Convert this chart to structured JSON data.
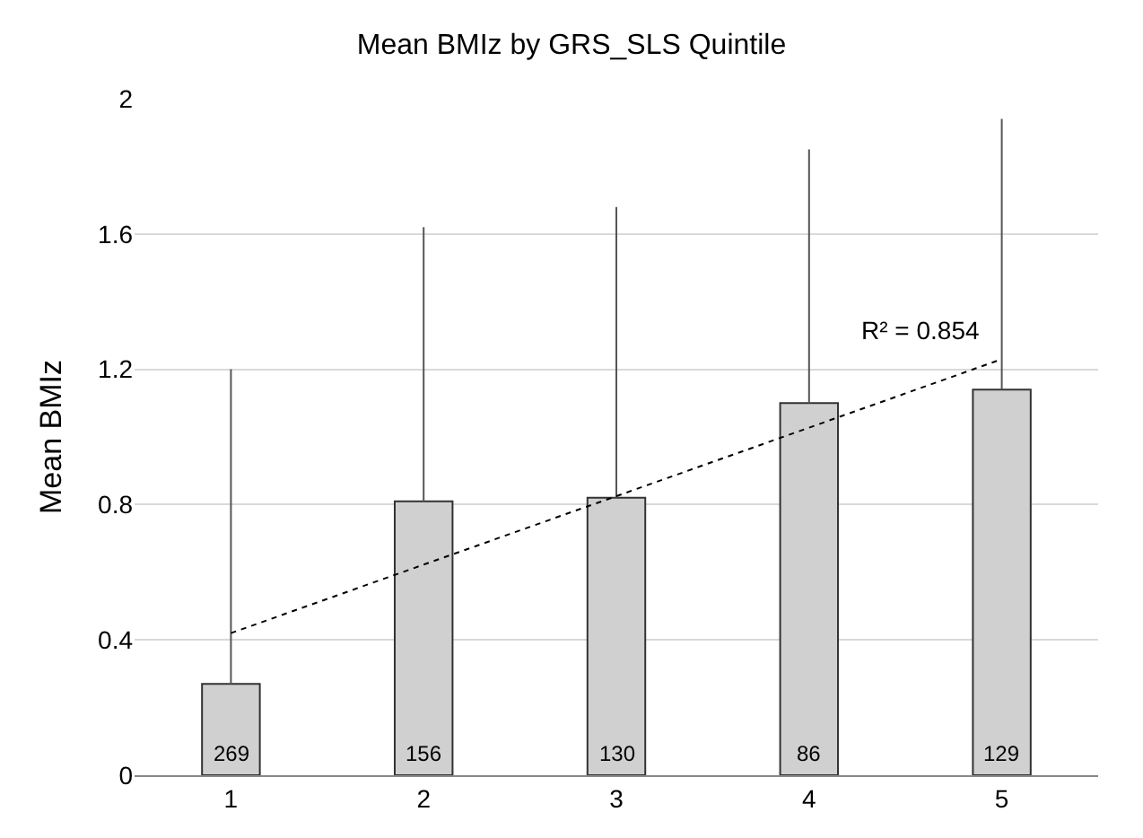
{
  "chart_data": {
    "type": "bar",
    "title": "Mean BMIz by GRS_SLS Quintile",
    "ylabel": "Mean BMIz",
    "categories": [
      "1",
      "2",
      "3",
      "4",
      "5"
    ],
    "series": [
      {
        "color": "#d0d0d0",
        "values": [
          0.27,
          0.81,
          0.82,
          1.1,
          1.14
        ],
        "errors": [
          [
            0.27,
            1.2
          ],
          [
            0.81,
            1.62
          ],
          [
            0.82,
            1.68
          ],
          [
            1.1,
            1.85
          ],
          [
            1.14,
            1.94
          ]
        ]
      },
      {
        "type": "line",
        "x": [
          "1",
          "5"
        ],
        "values": [
          0.42,
          1.23
        ],
        "color": "#000000",
        "line_style": "dotted"
      }
    ],
    "annotations": [
      {
        "text": "R² = 0.854",
        "x": "5",
        "y": 1.23
      },
      {
        "text": "269",
        "x": "1",
        "y": 0
      },
      {
        "text": "156",
        "x": "2",
        "y": 0
      },
      {
        "text": "130",
        "x": "3",
        "y": 0
      },
      {
        "text": "86",
        "x": "4",
        "y": 0
      },
      {
        "text": "129",
        "x": "5",
        "y": 0
      }
    ],
    "ylim": [
      0,
      2
    ],
    "yticks": [
      0,
      0.4,
      0.8,
      1.2,
      1.6,
      2
    ],
    "grid": "y"
  }
}
